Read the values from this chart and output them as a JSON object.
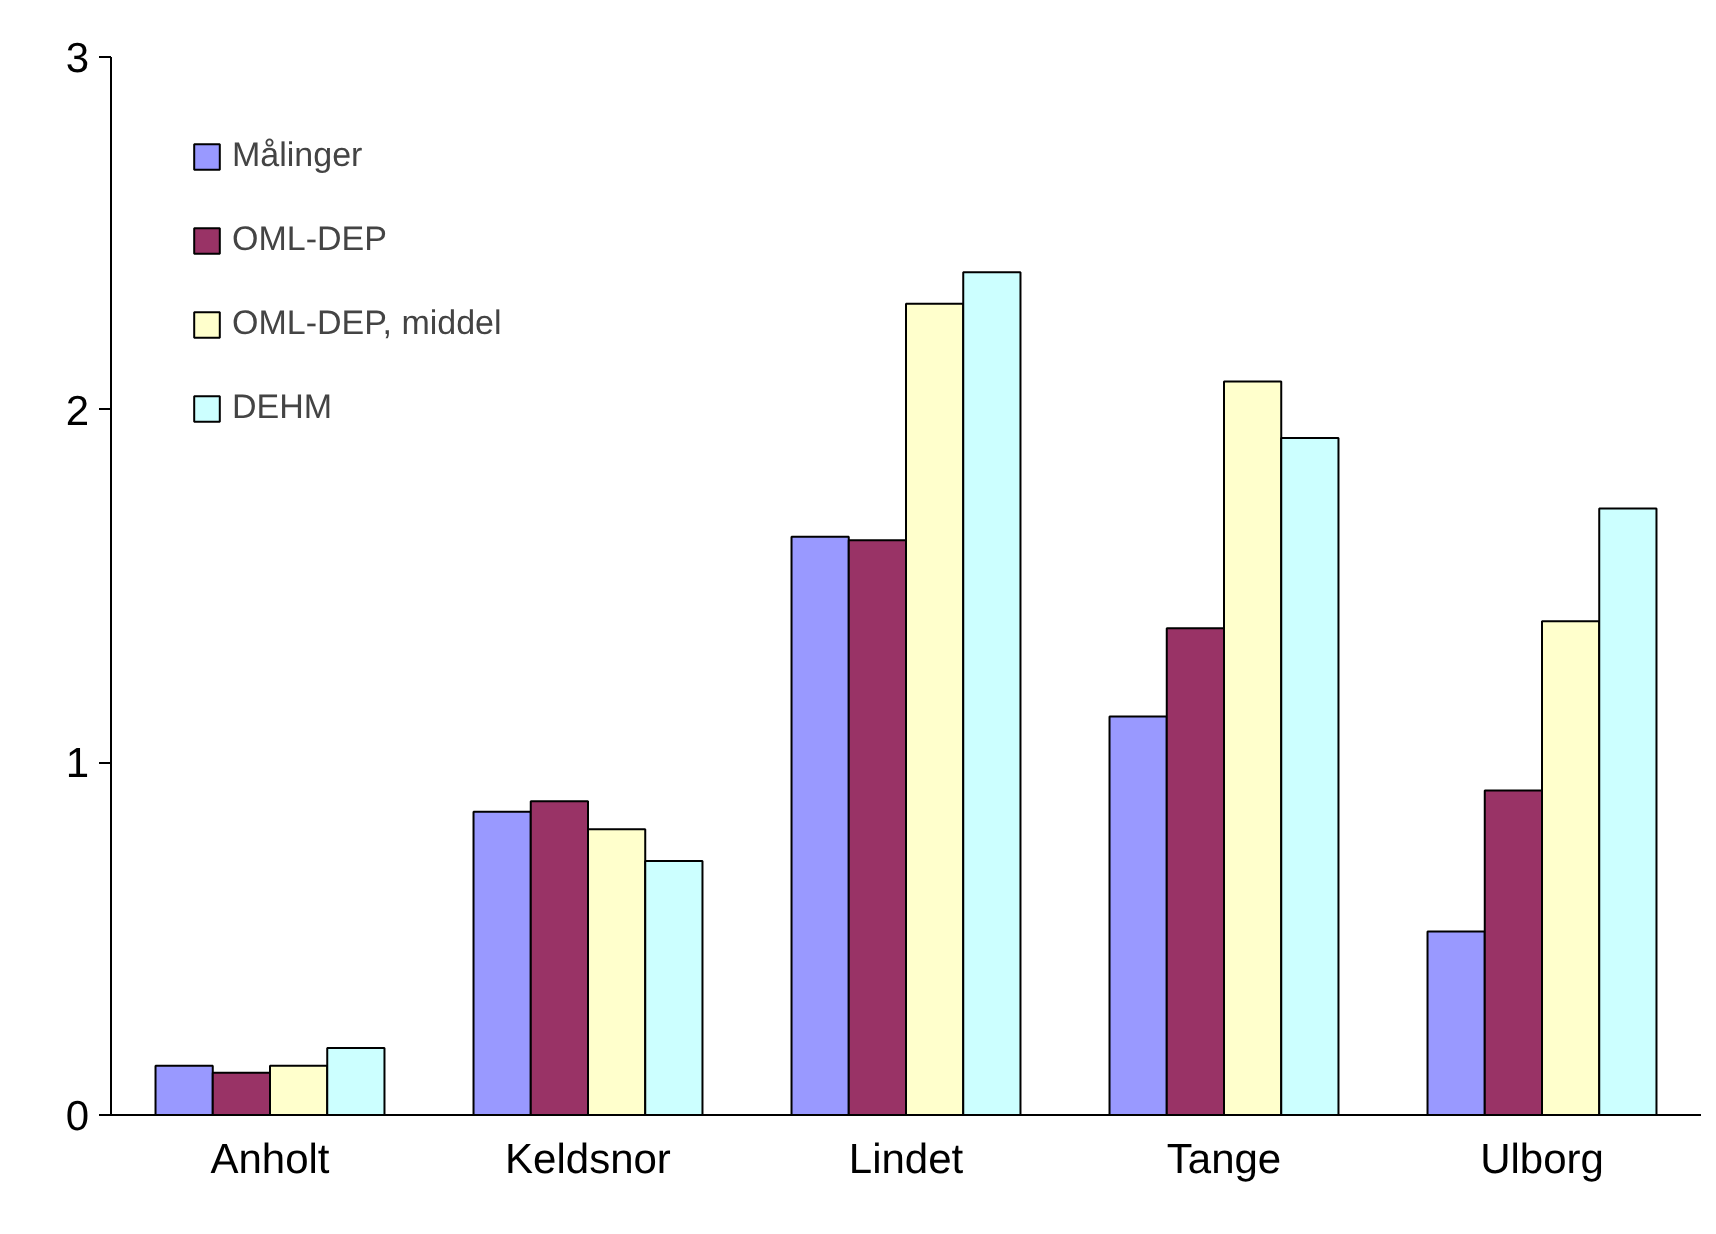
{
  "chart_data": {
    "type": "bar",
    "categories": [
      "Anholt",
      "Keldsnor",
      "Lindet",
      "Tange",
      "Ulborg"
    ],
    "series": [
      {
        "name": "Målinger",
        "color": "#9999ff",
        "values": [
          0.14,
          0.86,
          1.64,
          1.13,
          0.52
        ]
      },
      {
        "name": "OML-DEP",
        "color": "#993366",
        "values": [
          0.12,
          0.89,
          1.63,
          1.38,
          0.92
        ]
      },
      {
        "name": "OML-DEP, middel",
        "color": "#ffffcc",
        "values": [
          0.14,
          0.81,
          2.3,
          2.08,
          1.4
        ]
      },
      {
        "name": "DEHM",
        "color": "#ccffff",
        "values": [
          0.19,
          0.72,
          2.39,
          1.92,
          1.72
        ]
      }
    ],
    "ylim": [
      0,
      3
    ],
    "yticks": [
      0,
      1,
      2,
      3
    ],
    "grid": false,
    "legend": "top left"
  }
}
